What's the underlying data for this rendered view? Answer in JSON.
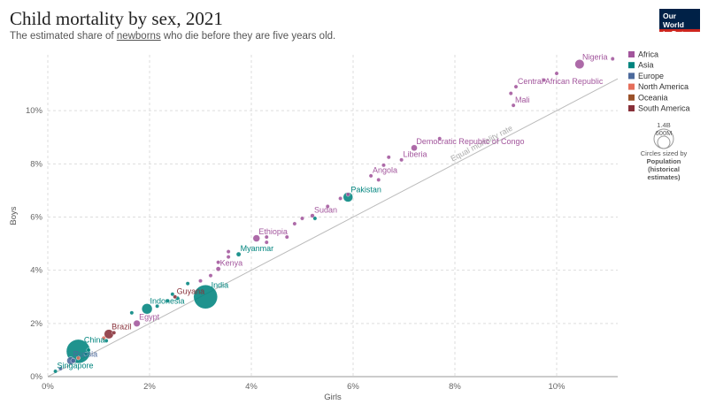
{
  "header": {
    "title": "Child mortality by sex, 2021",
    "subtitle_prefix": "The estimated share of ",
    "subtitle_link": "newborns",
    "subtitle_suffix": " who die before they are five years old.",
    "logo_line1": "Our World",
    "logo_line2": "in Data"
  },
  "colors": {
    "Africa": "#a2559c",
    "Asia": "#00847e",
    "Europe": "#4c6a9c",
    "North America": "#e56e5a",
    "Oceania": "#9a5129",
    "South America": "#883039",
    "reference_line": "#bbbbbb",
    "grid": "#dddddd"
  },
  "size_legend": {
    "tick_large": "1.4B",
    "tick_small": "600M",
    "caption": "Circles sized by",
    "variable_line1": "Population",
    "variable_line2": "(historical",
    "variable_line3": "estimates)"
  },
  "reference_line_label": "Equal mortality rate",
  "chart_data": {
    "type": "scatter",
    "xlabel": "Girls",
    "ylabel": "Boys",
    "xlim": [
      0,
      11.2
    ],
    "ylim": [
      0,
      12.1
    ],
    "x_ticks": [
      0,
      2,
      4,
      6,
      8,
      10
    ],
    "x_tick_labels": [
      "0%",
      "2%",
      "4%",
      "6%",
      "8%",
      "10%"
    ],
    "y_ticks": [
      0,
      2,
      4,
      6,
      8,
      10
    ],
    "y_tick_labels": [
      "0%",
      "2%",
      "4%",
      "6%",
      "8%",
      "10%"
    ],
    "grid": true,
    "legend_position": "right",
    "legend": [
      "Africa",
      "Asia",
      "Europe",
      "North America",
      "Oceania",
      "South America"
    ],
    "points": [
      {
        "label": "Nigeria",
        "region": "Africa",
        "x": 10.45,
        "y": 11.75,
        "pop": 213
      },
      {
        "label": "",
        "region": "Africa",
        "x": 11.1,
        "y": 11.95,
        "pop": 10
      },
      {
        "label": "",
        "region": "Africa",
        "x": 10.0,
        "y": 11.4,
        "pop": 10
      },
      {
        "label": "",
        "region": "Africa",
        "x": 9.75,
        "y": 11.15,
        "pop": 10
      },
      {
        "label": "Central African Republic",
        "region": "Africa",
        "x": 9.2,
        "y": 10.9,
        "pop": 5
      },
      {
        "label": "",
        "region": "Africa",
        "x": 9.1,
        "y": 10.65,
        "pop": 10
      },
      {
        "label": "Mali",
        "region": "Africa",
        "x": 9.15,
        "y": 10.2,
        "pop": 21
      },
      {
        "label": "",
        "region": "Africa",
        "x": 7.7,
        "y": 8.95,
        "pop": 5
      },
      {
        "label": "Democratic Republic of Congo",
        "region": "Africa",
        "x": 7.2,
        "y": 8.6,
        "pop": 96
      },
      {
        "label": "Liberia",
        "region": "Africa",
        "x": 6.95,
        "y": 8.15,
        "pop": 5
      },
      {
        "label": "",
        "region": "Africa",
        "x": 6.7,
        "y": 8.25,
        "pop": 10
      },
      {
        "label": "",
        "region": "Africa",
        "x": 6.6,
        "y": 7.95,
        "pop": 10
      },
      {
        "label": "Angola",
        "region": "Africa",
        "x": 6.35,
        "y": 7.55,
        "pop": 34
      },
      {
        "label": "",
        "region": "Africa",
        "x": 6.5,
        "y": 7.4,
        "pop": 10
      },
      {
        "label": "",
        "region": "Africa",
        "x": 5.9,
        "y": 6.85,
        "pop": 10
      },
      {
        "label": "Pakistan",
        "region": "Asia",
        "x": 5.9,
        "y": 6.75,
        "pop": 231
      },
      {
        "label": "",
        "region": "Africa",
        "x": 5.75,
        "y": 6.7,
        "pop": 10
      },
      {
        "label": "",
        "region": "Africa",
        "x": 5.5,
        "y": 6.4,
        "pop": 5
      },
      {
        "label": "Sudan",
        "region": "Africa",
        "x": 5.2,
        "y": 6.05,
        "pop": 45
      },
      {
        "label": "",
        "region": "Africa",
        "x": 5.0,
        "y": 5.95,
        "pop": 10
      },
      {
        "label": "",
        "region": "Asia",
        "x": 5.25,
        "y": 5.95,
        "pop": 10
      },
      {
        "label": "",
        "region": "Africa",
        "x": 4.85,
        "y": 5.75,
        "pop": 10
      },
      {
        "label": "Ethiopia",
        "region": "Africa",
        "x": 4.1,
        "y": 5.2,
        "pop": 120
      },
      {
        "label": "",
        "region": "Africa",
        "x": 4.3,
        "y": 5.25,
        "pop": 10
      },
      {
        "label": "",
        "region": "Africa",
        "x": 4.3,
        "y": 5.05,
        "pop": 10
      },
      {
        "label": "",
        "region": "Africa",
        "x": 4.7,
        "y": 5.25,
        "pop": 5
      },
      {
        "label": "Myanmar",
        "region": "Asia",
        "x": 3.75,
        "y": 4.6,
        "pop": 54
      },
      {
        "label": "",
        "region": "Africa",
        "x": 3.55,
        "y": 4.7,
        "pop": 5
      },
      {
        "label": "",
        "region": "Africa",
        "x": 3.55,
        "y": 4.5,
        "pop": 10
      },
      {
        "label": "",
        "region": "Africa",
        "x": 3.35,
        "y": 4.3,
        "pop": 5
      },
      {
        "label": "Kenya",
        "region": "Africa",
        "x": 3.35,
        "y": 4.05,
        "pop": 53
      },
      {
        "label": "",
        "region": "Africa",
        "x": 3.2,
        "y": 3.8,
        "pop": 5
      },
      {
        "label": "",
        "region": "Asia",
        "x": 2.75,
        "y": 3.5,
        "pop": 5
      },
      {
        "label": "",
        "region": "Africa",
        "x": 3.0,
        "y": 3.6,
        "pop": 10
      },
      {
        "label": "India",
        "region": "Asia",
        "x": 3.1,
        "y": 3.0,
        "pop": 1408
      },
      {
        "label": "Guyana",
        "region": "South America",
        "x": 2.5,
        "y": 3.0,
        "pop": 1
      },
      {
        "label": "",
        "region": "Asia",
        "x": 2.45,
        "y": 3.1,
        "pop": 10
      },
      {
        "label": "",
        "region": "Asia",
        "x": 2.55,
        "y": 2.95,
        "pop": 20
      },
      {
        "label": "Indonesia",
        "region": "Asia",
        "x": 1.95,
        "y": 2.55,
        "pop": 273
      },
      {
        "label": "",
        "region": "Asia",
        "x": 2.15,
        "y": 2.65,
        "pop": 10
      },
      {
        "label": "",
        "region": "Asia",
        "x": 2.35,
        "y": 2.85,
        "pop": 10
      },
      {
        "label": "",
        "region": "Asia",
        "x": 1.65,
        "y": 2.4,
        "pop": 20
      },
      {
        "label": "Egypt",
        "region": "Africa",
        "x": 1.75,
        "y": 2.0,
        "pop": 109
      },
      {
        "label": "Brazil",
        "region": "South America",
        "x": 1.2,
        "y": 1.6,
        "pop": 214
      },
      {
        "label": "",
        "region": "South America",
        "x": 1.3,
        "y": 1.65,
        "pop": 20
      },
      {
        "label": "",
        "region": "North America",
        "x": 1.1,
        "y": 1.45,
        "pop": 20
      },
      {
        "label": "",
        "region": "Asia",
        "x": 1.15,
        "y": 1.35,
        "pop": 20
      },
      {
        "label": "China",
        "region": "Asia",
        "x": 0.6,
        "y": 0.95,
        "pop": 1412
      },
      {
        "label": "",
        "region": "Asia",
        "x": 0.75,
        "y": 0.85,
        "pop": 20
      },
      {
        "label": "",
        "region": "Asia",
        "x": 0.8,
        "y": 1.0,
        "pop": 10
      },
      {
        "label": "Russia",
        "region": "Europe",
        "x": 0.45,
        "y": 0.6,
        "pop": 145
      },
      {
        "label": "",
        "region": "Europe",
        "x": 0.5,
        "y": 0.6,
        "pop": 60
      },
      {
        "label": "",
        "region": "North America",
        "x": 0.6,
        "y": 0.7,
        "pop": 20
      },
      {
        "label": "Singapore",
        "region": "Asia",
        "x": 0.15,
        "y": 0.2,
        "pop": 6
      },
      {
        "label": "",
        "region": "Europe",
        "x": 0.25,
        "y": 0.3,
        "pop": 20
      }
    ]
  }
}
